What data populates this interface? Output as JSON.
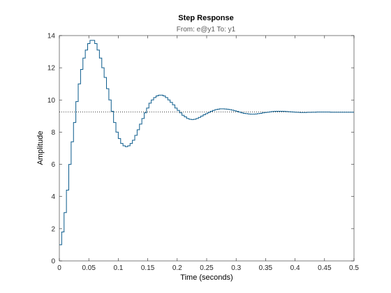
{
  "chart_data": {
    "type": "line",
    "title": "Step Response",
    "subtitle": "From: e@y1  To: y1",
    "xlabel": "Time (seconds)",
    "ylabel": "Amplitude",
    "xlim": [
      0,
      0.5
    ],
    "ylim": [
      0,
      14
    ],
    "xticks": [
      0,
      0.05,
      0.1,
      0.15,
      0.2,
      0.25,
      0.3,
      0.35,
      0.4,
      0.45,
      0.5
    ],
    "xtick_labels": [
      "0",
      "0.05",
      "0.1",
      "0.15",
      "0.2",
      "0.25",
      "0.3",
      "0.35",
      "0.4",
      "0.45",
      "0.5"
    ],
    "yticks": [
      0,
      2,
      4,
      6,
      8,
      10,
      12,
      14
    ],
    "ytick_labels": [
      "0",
      "2",
      "4",
      "6",
      "8",
      "10",
      "12",
      "14"
    ],
    "grid": false,
    "series": [
      {
        "style": "stairs",
        "color": "#0b5b8c",
        "sample_time": 0.004,
        "t0": 0,
        "values": [
          1.0,
          1.8,
          3.0,
          4.4,
          6.0,
          7.4,
          8.6,
          9.9,
          11.0,
          11.9,
          12.6,
          13.1,
          13.5,
          13.7,
          13.7,
          13.5,
          13.1,
          12.6,
          12.0,
          11.4,
          10.7,
          10.0,
          9.3,
          8.6,
          8.0,
          7.6,
          7.3,
          7.15,
          7.1,
          7.15,
          7.3,
          7.5,
          7.8,
          8.15,
          8.5,
          8.85,
          9.2,
          9.5,
          9.8,
          10.0,
          10.15,
          10.25,
          10.3,
          10.3,
          10.25,
          10.15,
          10.0,
          9.85,
          9.7,
          9.5,
          9.35,
          9.2,
          9.05,
          8.95,
          8.85,
          8.8,
          8.78,
          8.8,
          8.85,
          8.92,
          9.0,
          9.08,
          9.15,
          9.22,
          9.3,
          9.35,
          9.4,
          9.43,
          9.45,
          9.45,
          9.44,
          9.42,
          9.4,
          9.37,
          9.33,
          9.29,
          9.25,
          9.2,
          9.17,
          9.15,
          9.13,
          9.12,
          9.12,
          9.13,
          9.15,
          9.17,
          9.2,
          9.22,
          9.24,
          9.26,
          9.28,
          9.29,
          9.3,
          9.3,
          9.3,
          9.29,
          9.28,
          9.27,
          9.26,
          9.25,
          9.24,
          9.23,
          9.22,
          9.22,
          9.22,
          9.23,
          9.23,
          9.24,
          9.24,
          9.25,
          9.25,
          9.25,
          9.25,
          9.25,
          9.25,
          9.24,
          9.24,
          9.24,
          9.24,
          9.24,
          9.24,
          9.24,
          9.24,
          9.24,
          9.24,
          9.24
        ]
      }
    ],
    "reference_line": {
      "style": "dotted",
      "color": "#000000",
      "y": 9.25
    }
  }
}
